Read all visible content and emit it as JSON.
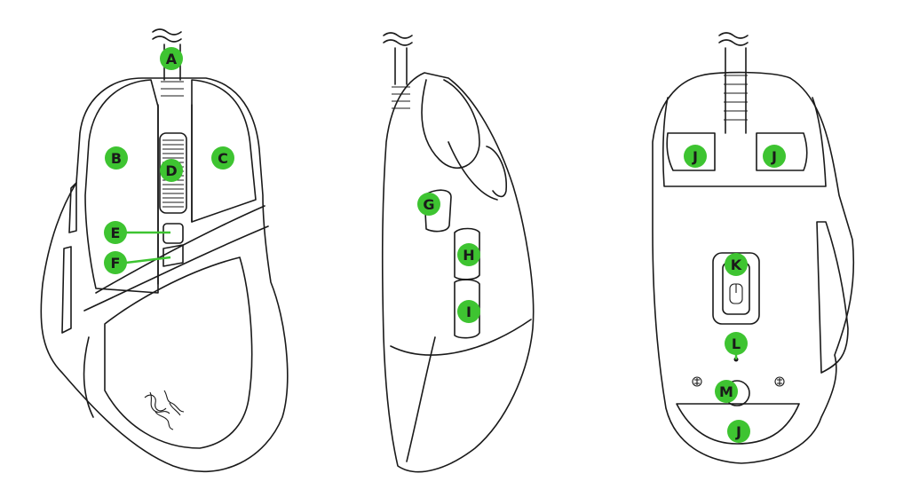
{
  "accent_color": "#3ec431",
  "labels": {
    "A": "A",
    "B": "B",
    "C": "C",
    "D": "D",
    "E": "E",
    "F": "F",
    "G": "G",
    "H": "H",
    "I": "I",
    "J": "J",
    "K": "K",
    "L": "L",
    "M": "M"
  },
  "views": [
    {
      "name": "top-view",
      "labels": [
        "A",
        "B",
        "C",
        "D",
        "E",
        "F"
      ]
    },
    {
      "name": "side-view",
      "labels": [
        "G",
        "H",
        "I"
      ]
    },
    {
      "name": "bottom-view",
      "labels": [
        "J",
        "J",
        "J",
        "K",
        "L",
        "M"
      ]
    }
  ],
  "icons": [
    "razer-logo-icon",
    "cable-icon",
    "scroll-wheel-icon",
    "sensor-icon",
    "screw-icon"
  ]
}
